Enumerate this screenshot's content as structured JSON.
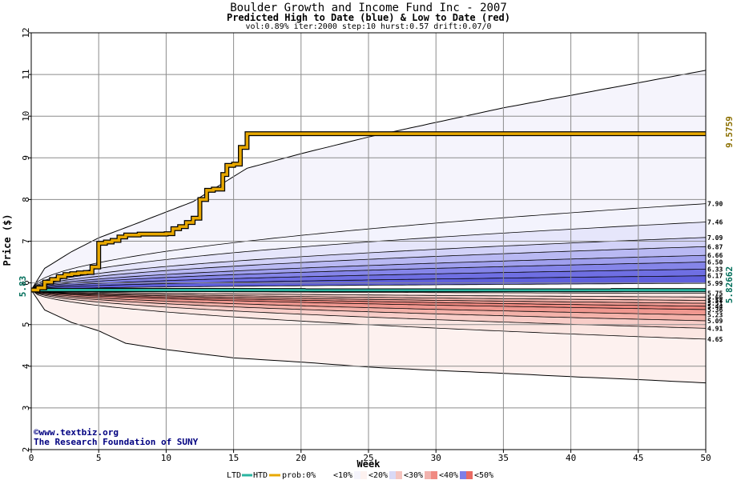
{
  "chart_data": {
    "type": "area",
    "title": "Boulder Growth and Income Fund Inc - 2007",
    "subtitle": "Predicted High to Date (blue) &  Low to Date (red)",
    "params": "vol:0.89% iter:2000 step:10 hurst:0.57 drift:0.07/0",
    "xlabel": "Week",
    "ylabel": "Price ($)",
    "xlim": [
      0,
      50
    ],
    "ylim": [
      2,
      12
    ],
    "x_ticks": [
      "0",
      "5",
      "10",
      "15",
      "20",
      "25",
      "30",
      "35",
      "40",
      "45",
      "50"
    ],
    "y_ticks": [
      "2",
      "3",
      "4",
      "5",
      "6",
      "7",
      "8",
      "9",
      "10",
      "11",
      "12"
    ],
    "grid": true,
    "start_price_label": "5.83",
    "start_price": 5.83,
    "ltd_final_label": "5.82662",
    "ltd_final": 5.82662,
    "htd_final_label": "9.5759",
    "htd_final": 9.5759,
    "outer_band": {
      "upper": [
        [
          0,
          5.83
        ],
        [
          1,
          6.35
        ],
        [
          3,
          6.75
        ],
        [
          5,
          7.08
        ],
        [
          8,
          7.45
        ],
        [
          12,
          7.95
        ],
        [
          16,
          8.75
        ],
        [
          20,
          9.1
        ],
        [
          25,
          9.5
        ],
        [
          30,
          9.85
        ],
        [
          35,
          10.2
        ],
        [
          40,
          10.5
        ],
        [
          45,
          10.8
        ],
        [
          50,
          11.1
        ]
      ],
      "lower": [
        [
          0,
          5.83
        ],
        [
          1,
          5.35
        ],
        [
          3,
          5.05
        ],
        [
          5,
          4.85
        ],
        [
          7,
          4.55
        ],
        [
          10,
          4.4
        ],
        [
          15,
          4.2
        ],
        [
          20,
          4.1
        ],
        [
          25,
          3.98
        ],
        [
          30,
          3.9
        ],
        [
          35,
          3.83
        ],
        [
          40,
          3.75
        ],
        [
          45,
          3.68
        ],
        [
          50,
          3.6
        ]
      ]
    },
    "high_quantiles": [
      {
        "label": "7.90",
        "value": 7.9
      },
      {
        "label": "7.46",
        "value": 7.46
      },
      {
        "label": "7.09",
        "value": 7.09
      },
      {
        "label": "6.87",
        "value": 6.87
      },
      {
        "label": "6.66",
        "value": 6.66
      },
      {
        "label": "6.50",
        "value": 6.5
      },
      {
        "label": "6.33",
        "value": 6.33
      },
      {
        "label": "6.17",
        "value": 6.17
      },
      {
        "label": "5.99",
        "value": 5.99
      }
    ],
    "low_quantiles": [
      {
        "label": "5.75",
        "value": 5.75
      },
      {
        "label": "5.66",
        "value": 5.66
      },
      {
        "label": "5.58",
        "value": 5.58
      },
      {
        "label": "5.51",
        "value": 5.51
      },
      {
        "label": "5.44",
        "value": 5.44
      },
      {
        "label": "5.36",
        "value": 5.36
      },
      {
        "label": "5.23",
        "value": 5.23
      },
      {
        "label": "5.09",
        "value": 5.09
      },
      {
        "label": "4.91",
        "value": 4.91
      },
      {
        "label": "4.65",
        "value": 4.65
      }
    ],
    "htd_series": [
      [
        0,
        5.83
      ],
      [
        0.5,
        5.88
      ],
      [
        1,
        6.02
      ],
      [
        1.5,
        6.08
      ],
      [
        2,
        6.15
      ],
      [
        2.5,
        6.2
      ],
      [
        3,
        6.22
      ],
      [
        3.5,
        6.24
      ],
      [
        4,
        6.25
      ],
      [
        4.5,
        6.38
      ],
      [
        5,
        6.95
      ],
      [
        5.5,
        6.98
      ],
      [
        6,
        7.02
      ],
      [
        6.5,
        7.1
      ],
      [
        7,
        7.15
      ],
      [
        8,
        7.17
      ],
      [
        9,
        7.17
      ],
      [
        10,
        7.18
      ],
      [
        10.5,
        7.3
      ],
      [
        11,
        7.35
      ],
      [
        11.5,
        7.45
      ],
      [
        12,
        7.55
      ],
      [
        12.5,
        8.0
      ],
      [
        13,
        8.22
      ],
      [
        13.5,
        8.25
      ],
      [
        14,
        8.25
      ],
      [
        14.2,
        8.6
      ],
      [
        14.5,
        8.82
      ],
      [
        15,
        8.85
      ],
      [
        15.5,
        9.25
      ],
      [
        16,
        9.58
      ],
      [
        50,
        9.58
      ]
    ],
    "ltd_series": [
      [
        0,
        5.83
      ],
      [
        50,
        5.826
      ]
    ]
  },
  "colors": {
    "band_blue": [
      "#f3f3fd",
      "#e6e6fb",
      "#d2d2f8",
      "#b9b9f3",
      "#a0a0ee",
      "#8585e9",
      "#6f6fe3",
      "#6060dc",
      "#8080e6"
    ],
    "band_red": [
      "#fbe3e0",
      "#f8cdc8",
      "#f5b5ae",
      "#f29d95",
      "#ef8880",
      "#f09890",
      "#f4b2aa",
      "#f8cdc8",
      "#fbe6e2",
      "#fdf1ef"
    ],
    "outer_fill": "#f5f4fc",
    "outer_fill_low": "#fdf1ef",
    "htd": "#e8a800",
    "ltd": "#2ab5a0",
    "htd_label": "#8b6f00",
    "ltd_label": "#006e5a",
    "credit": "#000080"
  },
  "credit": {
    "line1": "©www.textbiz.org",
    "line2": "The Research Foundation of SUNY"
  },
  "legend": {
    "ltd": "LTD",
    "htd": "HTD",
    "prob": "prob:0%",
    "items": [
      "<10%",
      "<20%",
      "<30%",
      "<40%",
      "<50%"
    ],
    "swatches": [
      "#ffffff",
      "#f5f4fc",
      "#d9d9f6",
      "#f2b3ae",
      "#7e7ee6"
    ],
    "swatches_red": [
      "#ffffff",
      "#fdf1ef",
      "#f5c4bf",
      "#f08a82",
      "#e96a62"
    ]
  }
}
